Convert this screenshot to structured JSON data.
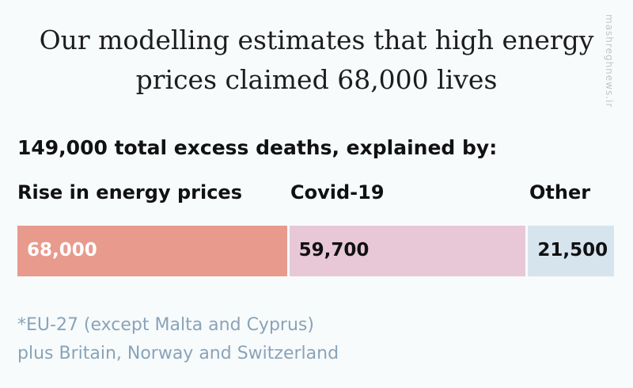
{
  "chart_data": {
    "type": "bar",
    "orientation": "horizontal-stacked",
    "title": "Our modelling estimates that high energy prices claimed 68,000 lives",
    "subtitle": "149,000 total excess deaths, explained by:",
    "categories": [
      "Rise in energy prices",
      "Covid-19",
      "Other"
    ],
    "values": [
      68000,
      59700,
      21500
    ],
    "value_labels": [
      "68,000",
      "59,700",
      "21,500"
    ],
    "colors": [
      "#e89a8c",
      "#e8c8d6",
      "#d6e4ee"
    ],
    "label_colors": [
      "#ffffff",
      "#111111",
      "#111111"
    ],
    "total": 149000,
    "footnote": [
      "*EU-27 (except Malta and Cyprus)",
      "plus Britain, Norway and Switzerland"
    ]
  },
  "watermark": "mashreghnews.ir"
}
